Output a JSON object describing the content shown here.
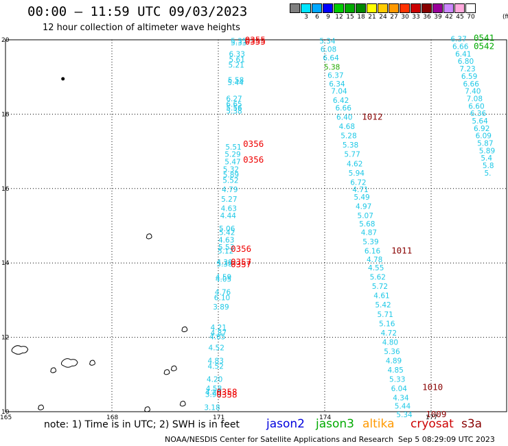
{
  "title": "00:00 — 11:59 UTC 09/03/2023",
  "subtitle": "12 hour collection of altimeter wave heights",
  "note": "note: 1) Time is in UTC; 2) SWH is in feet",
  "credit": "NOAA/NESDIS Center for Satellite Applications and Research",
  "timestamp": "Sep  5 08:29:09 UTC 2023",
  "missions": [
    {
      "name": "jason2",
      "color": "#0000dd"
    },
    {
      "name": "jason3",
      "color": "#00aa00"
    },
    {
      "name": "altika",
      "color": "#ff9900"
    },
    {
      "name": "cryosat",
      "color": "#cc0000"
    },
    {
      "name": "s3a",
      "color": "#880000"
    }
  ],
  "colorbar": {
    "unit": "(ft)",
    "labels": [
      "3",
      "6",
      "9",
      "12",
      "15",
      "18",
      "21",
      "24",
      "27",
      "30",
      "33",
      "36",
      "39",
      "42",
      "45",
      "70"
    ],
    "colors": [
      "#808080",
      "#00e5ff",
      "#00a8ff",
      "#0000ff",
      "#00cc00",
      "#00aa00",
      "#008800",
      "#ffff00",
      "#ffcc00",
      "#ff9900",
      "#ff3300",
      "#cc0000",
      "#880000",
      "#990099",
      "#cc88ff",
      "#ffaadd",
      "#ffffff"
    ]
  },
  "map": {
    "lon_range": [
      165,
      179
    ],
    "lat_range": [
      10,
      20
    ],
    "lon_ticks": [
      165,
      168,
      171,
      174,
      177
    ],
    "lon_tick_labels": [
      "165",
      "168",
      "171",
      "174",
      "177"
    ],
    "lat_ticks": [
      10,
      12,
      14,
      16,
      18,
      20
    ],
    "lat_tick_labels": [
      "10",
      "12",
      "14",
      "16",
      "18",
      "20"
    ],
    "wave_color": "#1ec8e6",
    "wave_color_green": "#22aa00",
    "tracks": [
      {
        "name": "track-171",
        "points": [
          {
            "lat": 19.9,
            "lon": 171.35,
            "v": "5.35"
          },
          {
            "lat": 19.85,
            "lon": 171.35,
            "v": "5.33"
          },
          {
            "lat": 19.55,
            "lon": 171.3,
            "v": "6.33"
          },
          {
            "lat": 19.4,
            "lon": 171.3,
            "v": "5.61"
          },
          {
            "lat": 19.25,
            "lon": 171.28,
            "v": "5.21"
          },
          {
            "lat": 18.85,
            "lon": 171.27,
            "v": "5.58"
          },
          {
            "lat": 18.78,
            "lon": 171.26,
            "v": "5.44"
          },
          {
            "lat": 18.35,
            "lon": 171.22,
            "v": "6.27"
          },
          {
            "lat": 18.2,
            "lon": 171.22,
            "v": "6.65"
          },
          {
            "lat": 18.1,
            "lon": 171.22,
            "v": "5.56"
          },
          {
            "lat": 18.02,
            "lon": 171.22,
            "v": "5.38"
          },
          {
            "lat": 17.05,
            "lon": 171.2,
            "v": "5.51"
          },
          {
            "lat": 16.85,
            "lon": 171.18,
            "v": "5.29"
          },
          {
            "lat": 16.65,
            "lon": 171.18,
            "v": "5.47"
          },
          {
            "lat": 16.45,
            "lon": 171.13,
            "v": "5.32"
          },
          {
            "lat": 16.3,
            "lon": 171.13,
            "v": "5.89"
          },
          {
            "lat": 16.15,
            "lon": 171.12,
            "v": "5.52"
          },
          {
            "lat": 15.9,
            "lon": 171.1,
            "v": "4.79"
          },
          {
            "lat": 15.65,
            "lon": 171.08,
            "v": "5.27"
          },
          {
            "lat": 15.4,
            "lon": 171.07,
            "v": "4.63"
          },
          {
            "lat": 15.2,
            "lon": 171.05,
            "v": "4.44"
          },
          {
            "lat": 14.85,
            "lon": 171.02,
            "v": "5.06"
          },
          {
            "lat": 14.75,
            "lon": 171.02,
            "v": "5.42"
          },
          {
            "lat": 14.55,
            "lon": 171.0,
            "v": "4.63"
          },
          {
            "lat": 14.35,
            "lon": 171.0,
            "v": "5.53"
          },
          {
            "lat": 14.25,
            "lon": 170.98,
            "v": "5.12"
          },
          {
            "lat": 13.95,
            "lon": 170.95,
            "v": "4.39"
          },
          {
            "lat": 13.9,
            "lon": 170.95,
            "v": "5.38"
          },
          {
            "lat": 13.55,
            "lon": 170.92,
            "v": "4.59"
          },
          {
            "lat": 13.5,
            "lon": 170.92,
            "v": "4.05"
          },
          {
            "lat": 13.15,
            "lon": 170.9,
            "v": "4.76"
          },
          {
            "lat": 13.0,
            "lon": 170.88,
            "v": "6.10"
          },
          {
            "lat": 12.75,
            "lon": 170.85,
            "v": "3.89"
          },
          {
            "lat": 12.2,
            "lon": 170.78,
            "v": "4.21"
          },
          {
            "lat": 12.05,
            "lon": 170.78,
            "v": "4.87"
          },
          {
            "lat": 11.95,
            "lon": 170.75,
            "v": "4.65"
          },
          {
            "lat": 11.65,
            "lon": 170.72,
            "v": "4.52"
          },
          {
            "lat": 11.3,
            "lon": 170.7,
            "v": "4.83"
          },
          {
            "lat": 11.15,
            "lon": 170.7,
            "v": "4.52"
          },
          {
            "lat": 10.8,
            "lon": 170.67,
            "v": "4.20"
          },
          {
            "lat": 10.55,
            "lon": 170.65,
            "v": "4.58"
          },
          {
            "lat": 10.45,
            "lon": 170.63,
            "v": "4.20"
          },
          {
            "lat": 10.4,
            "lon": 170.63,
            "v": "3.99"
          },
          {
            "lat": 10.05,
            "lon": 170.6,
            "v": "3.18"
          }
        ]
      },
      {
        "name": "track-174",
        "points": [
          {
            "lat": 19.9,
            "lon": 173.85,
            "v": "5.34"
          },
          {
            "lat": 19.68,
            "lon": 173.88,
            "v": "6.08"
          },
          {
            "lat": 19.45,
            "lon": 173.95,
            "v": "6.64"
          },
          {
            "lat": 19.2,
            "lon": 173.98,
            "v": "5.38",
            "green": true
          },
          {
            "lat": 18.98,
            "lon": 174.08,
            "v": "6.37"
          },
          {
            "lat": 18.75,
            "lon": 174.12,
            "v": "6.34"
          },
          {
            "lat": 18.55,
            "lon": 174.18,
            "v": "7.04"
          },
          {
            "lat": 18.3,
            "lon": 174.23,
            "v": "6.42"
          },
          {
            "lat": 18.1,
            "lon": 174.3,
            "v": "6.66"
          },
          {
            "lat": 17.85,
            "lon": 174.33,
            "v": "6.40"
          },
          {
            "lat": 17.6,
            "lon": 174.4,
            "v": "4.68"
          },
          {
            "lat": 17.35,
            "lon": 174.45,
            "v": "5.28"
          },
          {
            "lat": 17.1,
            "lon": 174.5,
            "v": "5.38"
          },
          {
            "lat": 16.85,
            "lon": 174.55,
            "v": "5.77"
          },
          {
            "lat": 16.6,
            "lon": 174.62,
            "v": "4.62"
          },
          {
            "lat": 16.35,
            "lon": 174.67,
            "v": "5.94"
          },
          {
            "lat": 16.1,
            "lon": 174.72,
            "v": "6.72"
          },
          {
            "lat": 15.9,
            "lon": 174.78,
            "v": "4.71"
          },
          {
            "lat": 15.7,
            "lon": 174.82,
            "v": "5.49"
          },
          {
            "lat": 15.45,
            "lon": 174.87,
            "v": "4.97"
          },
          {
            "lat": 15.2,
            "lon": 174.92,
            "v": "5.07"
          },
          {
            "lat": 14.98,
            "lon": 174.97,
            "v": "5.68"
          },
          {
            "lat": 14.75,
            "lon": 175.02,
            "v": "4.87"
          },
          {
            "lat": 14.5,
            "lon": 175.07,
            "v": "5.39"
          },
          {
            "lat": 14.25,
            "lon": 175.12,
            "v": "6.16"
          },
          {
            "lat": 14.02,
            "lon": 175.18,
            "v": "4.78"
          },
          {
            "lat": 13.8,
            "lon": 175.22,
            "v": "4.55"
          },
          {
            "lat": 13.55,
            "lon": 175.27,
            "v": "5.62"
          },
          {
            "lat": 13.3,
            "lon": 175.33,
            "v": "5.72"
          },
          {
            "lat": 13.05,
            "lon": 175.38,
            "v": "4.61"
          },
          {
            "lat": 12.8,
            "lon": 175.42,
            "v": "5.42"
          },
          {
            "lat": 12.55,
            "lon": 175.48,
            "v": "5.71"
          },
          {
            "lat": 12.3,
            "lon": 175.53,
            "v": "5.16"
          },
          {
            "lat": 12.05,
            "lon": 175.58,
            "v": "4.72"
          },
          {
            "lat": 11.8,
            "lon": 175.62,
            "v": "4.80"
          },
          {
            "lat": 11.55,
            "lon": 175.67,
            "v": "5.36"
          },
          {
            "lat": 11.3,
            "lon": 175.72,
            "v": "4.89"
          },
          {
            "lat": 11.05,
            "lon": 175.77,
            "v": "4.85"
          },
          {
            "lat": 10.8,
            "lon": 175.82,
            "v": "5.33"
          },
          {
            "lat": 10.55,
            "lon": 175.87,
            "v": "6.04"
          },
          {
            "lat": 10.3,
            "lon": 175.92,
            "v": "4.34"
          },
          {
            "lat": 10.08,
            "lon": 175.97,
            "v": "5.44"
          },
          {
            "lat": 9.85,
            "lon": 176.02,
            "v": "5.34"
          }
        ]
      },
      {
        "name": "track-177",
        "points": [
          {
            "lat": 19.95,
            "lon": 177.55,
            "v": "6.37"
          },
          {
            "lat": 19.75,
            "lon": 177.6,
            "v": "6.66"
          },
          {
            "lat": 19.55,
            "lon": 177.68,
            "v": "6.41"
          },
          {
            "lat": 19.35,
            "lon": 177.75,
            "v": "6.80"
          },
          {
            "lat": 19.15,
            "lon": 177.8,
            "v": "7.23"
          },
          {
            "lat": 18.95,
            "lon": 177.85,
            "v": "6.59"
          },
          {
            "lat": 18.75,
            "lon": 177.9,
            "v": "6.66"
          },
          {
            "lat": 18.55,
            "lon": 177.95,
            "v": "7.40"
          },
          {
            "lat": 18.35,
            "lon": 178.0,
            "v": "7.08"
          },
          {
            "lat": 18.15,
            "lon": 178.05,
            "v": "6.60"
          },
          {
            "lat": 17.95,
            "lon": 178.1,
            "v": "6.36"
          },
          {
            "lat": 17.75,
            "lon": 178.15,
            "v": "5.64"
          },
          {
            "lat": 17.55,
            "lon": 178.2,
            "v": "6.92"
          },
          {
            "lat": 17.35,
            "lon": 178.25,
            "v": "6.09"
          },
          {
            "lat": 17.15,
            "lon": 178.3,
            "v": "5.87"
          },
          {
            "lat": 16.95,
            "lon": 178.35,
            "v": "5.89"
          },
          {
            "lat": 16.75,
            "lon": 178.4,
            "v": "5.4"
          },
          {
            "lat": 16.55,
            "lon": 178.45,
            "v": "5.8"
          },
          {
            "lat": 16.35,
            "lon": 178.5,
            "v": "5."
          }
        ]
      }
    ],
    "passes": [
      {
        "lat": 19.92,
        "lon": 171.75,
        "v": "0355",
        "color": "#ee0000"
      },
      {
        "lat": 19.87,
        "lon": 171.75,
        "v": "0355",
        "color": "#ee0000"
      },
      {
        "lat": 17.12,
        "lon": 171.7,
        "v": "0356",
        "color": "#ee0000"
      },
      {
        "lat": 16.7,
        "lon": 171.7,
        "v": "0356",
        "color": "#ee0000"
      },
      {
        "lat": 14.3,
        "lon": 171.35,
        "v": "0356",
        "color": "#ee0000"
      },
      {
        "lat": 13.95,
        "lon": 171.35,
        "v": "0357",
        "color": "#ee0000"
      },
      {
        "lat": 13.88,
        "lon": 171.35,
        "v": "0357",
        "color": "#ee0000"
      },
      {
        "lat": 10.45,
        "lon": 170.95,
        "v": "0358",
        "color": "#ee0000"
      },
      {
        "lat": 10.38,
        "lon": 170.95,
        "v": "0358",
        "color": "#ee0000"
      },
      {
        "lat": 17.85,
        "lon": 175.05,
        "v": "1012",
        "color": "#880000"
      },
      {
        "lat": 14.25,
        "lon": 175.88,
        "v": "1011",
        "color": "#880000"
      },
      {
        "lat": 10.58,
        "lon": 176.75,
        "v": "1010",
        "color": "#880000"
      },
      {
        "lat": 9.85,
        "lon": 176.85,
        "v": "1009",
        "color": "#880000"
      },
      {
        "lat": 19.97,
        "lon": 178.2,
        "v": "0541",
        "color": "#00aa00"
      },
      {
        "lat": 19.75,
        "lon": 178.2,
        "v": "0542",
        "color": "#00aa00"
      }
    ],
    "islands": [
      {
        "lat": 18.95,
        "lon": 166.62,
        "kind": "dot"
      },
      {
        "lat": 14.7,
        "lon": 169.05,
        "kind": "blob"
      },
      {
        "lat": 12.2,
        "lon": 170.05,
        "kind": "blob"
      },
      {
        "lat": 11.6,
        "lon": 165.4,
        "kind": "big"
      },
      {
        "lat": 11.25,
        "lon": 166.8,
        "kind": "big"
      },
      {
        "lat": 11.3,
        "lon": 167.45,
        "kind": "blob"
      },
      {
        "lat": 11.15,
        "lon": 169.75,
        "kind": "blob"
      },
      {
        "lat": 11.1,
        "lon": 166.35,
        "kind": "blob"
      },
      {
        "lat": 11.05,
        "lon": 169.55,
        "kind": "blob"
      },
      {
        "lat": 10.2,
        "lon": 170.0,
        "kind": "blob"
      },
      {
        "lat": 10.05,
        "lon": 169.0,
        "kind": "blob"
      },
      {
        "lat": 10.1,
        "lon": 166.0,
        "kind": "blob"
      }
    ]
  }
}
